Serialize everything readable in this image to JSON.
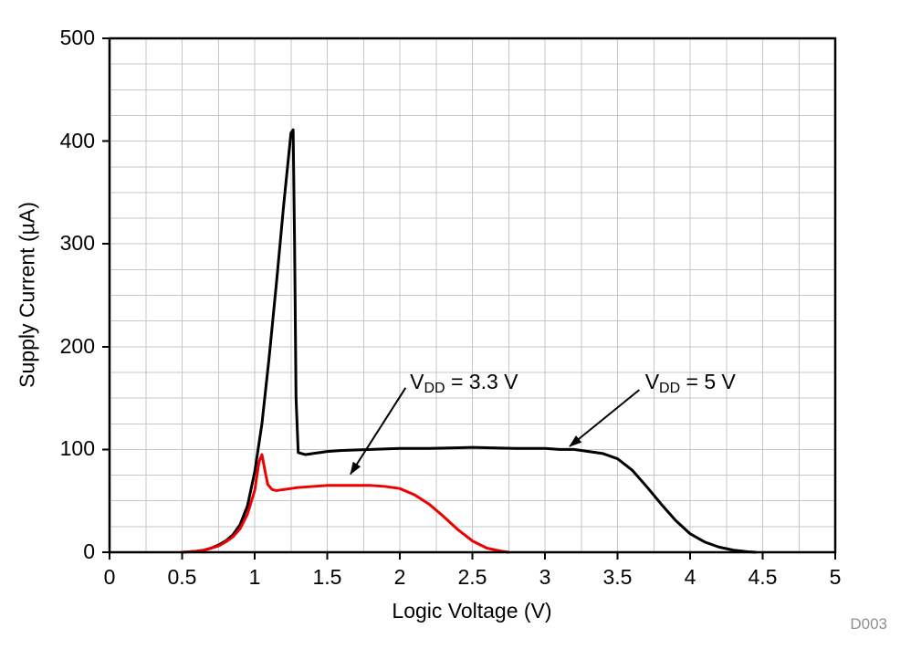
{
  "figure_label": "D003",
  "colors": {
    "grid": "#c6c6c6",
    "axis": "#000000",
    "annotation": "#000000",
    "figure_label_color": "#909090"
  },
  "chart_data": {
    "type": "line",
    "xlabel": "Logic Voltage (V)",
    "ylabel": "Supply Current (µA)",
    "xlim": [
      0,
      5
    ],
    "ylim": [
      0,
      500
    ],
    "grid": true,
    "legend_position": "none",
    "x_ticks": [
      0,
      0.5,
      1,
      1.5,
      2,
      2.5,
      3,
      3.5,
      4,
      4.5,
      5
    ],
    "x_tick_labels": [
      "0",
      "0.5",
      "1",
      "1.5",
      "2",
      "2.5",
      "3",
      "3.5",
      "4",
      "4.5",
      "5"
    ],
    "y_ticks": [
      0,
      100,
      200,
      300,
      400,
      500
    ],
    "y_tick_labels": [
      "0",
      "100",
      "200",
      "300",
      "400",
      "500"
    ],
    "x_minor_step": 0.25,
    "y_minor_step": 25,
    "series": [
      {
        "id": "vdd-5v",
        "name": "VDD = 5 V",
        "color": "#000000",
        "points": [
          [
            0.5,
            0
          ],
          [
            0.55,
            0.5
          ],
          [
            0.6,
            1
          ],
          [
            0.65,
            2
          ],
          [
            0.7,
            4
          ],
          [
            0.75,
            7
          ],
          [
            0.8,
            11
          ],
          [
            0.85,
            17
          ],
          [
            0.9,
            27
          ],
          [
            0.95,
            45
          ],
          [
            1.0,
            78
          ],
          [
            1.05,
            125
          ],
          [
            1.1,
            190
          ],
          [
            1.15,
            262
          ],
          [
            1.2,
            338
          ],
          [
            1.25,
            408
          ],
          [
            1.265,
            411
          ],
          [
            1.275,
            300
          ],
          [
            1.285,
            150
          ],
          [
            1.3,
            97
          ],
          [
            1.35,
            95
          ],
          [
            1.4,
            96
          ],
          [
            1.5,
            98
          ],
          [
            1.6,
            99
          ],
          [
            1.8,
            100
          ],
          [
            2.0,
            101
          ],
          [
            2.2,
            101
          ],
          [
            2.5,
            102
          ],
          [
            2.8,
            101
          ],
          [
            3.0,
            101
          ],
          [
            3.1,
            100
          ],
          [
            3.2,
            100
          ],
          [
            3.3,
            98
          ],
          [
            3.4,
            96
          ],
          [
            3.5,
            91
          ],
          [
            3.6,
            80
          ],
          [
            3.7,
            64
          ],
          [
            3.8,
            47
          ],
          [
            3.9,
            31
          ],
          [
            4.0,
            18
          ],
          [
            4.1,
            10
          ],
          [
            4.2,
            5
          ],
          [
            4.3,
            2
          ],
          [
            4.4,
            0.5
          ],
          [
            4.45,
            0
          ]
        ]
      },
      {
        "id": "vdd-3v3",
        "name": "VDD = 3.3 V",
        "color": "#ee0000",
        "points": [
          [
            0.5,
            0
          ],
          [
            0.55,
            0.5
          ],
          [
            0.6,
            1
          ],
          [
            0.65,
            2
          ],
          [
            0.7,
            4
          ],
          [
            0.75,
            6
          ],
          [
            0.8,
            10
          ],
          [
            0.85,
            15
          ],
          [
            0.9,
            23
          ],
          [
            0.95,
            37
          ],
          [
            1.0,
            60
          ],
          [
            1.03,
            88
          ],
          [
            1.05,
            95
          ],
          [
            1.07,
            80
          ],
          [
            1.09,
            66
          ],
          [
            1.12,
            61
          ],
          [
            1.15,
            60
          ],
          [
            1.2,
            61
          ],
          [
            1.3,
            63
          ],
          [
            1.4,
            64
          ],
          [
            1.5,
            65
          ],
          [
            1.6,
            65
          ],
          [
            1.7,
            65
          ],
          [
            1.8,
            65
          ],
          [
            1.9,
            64
          ],
          [
            2.0,
            62
          ],
          [
            2.1,
            56
          ],
          [
            2.2,
            47
          ],
          [
            2.3,
            35
          ],
          [
            2.4,
            22
          ],
          [
            2.5,
            11
          ],
          [
            2.6,
            4
          ],
          [
            2.7,
            1
          ],
          [
            2.75,
            0
          ]
        ]
      }
    ],
    "annotations": [
      {
        "pre": "V",
        "sub": "DD",
        "post": " = 3.3 V",
        "text_anchor": [
          2.07,
          178
        ],
        "arrow": [
          [
            2.04,
            160
          ],
          [
            1.66,
            76
          ]
        ]
      },
      {
        "pre": "V",
        "sub": "DD",
        "post": " = 5 V",
        "text_anchor": [
          3.69,
          178
        ],
        "arrow": [
          [
            3.65,
            158
          ],
          [
            3.17,
            103
          ]
        ]
      }
    ]
  }
}
